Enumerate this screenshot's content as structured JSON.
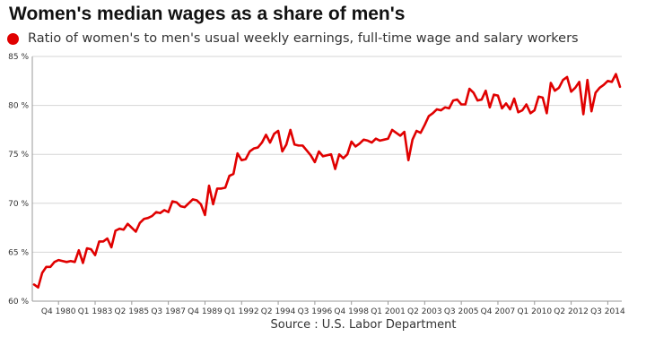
{
  "chart_data": {
    "type": "line",
    "title": "Women's median wages as a share of men's",
    "source": "Source : U.S. Labor Department",
    "xlabel": "",
    "ylabel": "",
    "ylim": [
      60,
      85
    ],
    "y_ticks": [
      "60 %",
      "65 %",
      "70 %",
      "75 %",
      "80 %",
      "85 %"
    ],
    "x_ticks": [
      "Q4 1980",
      "Q1 1983",
      "Q2 1985",
      "Q3 1987",
      "Q4 1989",
      "Q1 1992",
      "Q2 1994",
      "Q3 1996",
      "Q4 1998",
      "Q1 2001",
      "Q2 2003",
      "Q3 2005",
      "Q4 2007",
      "Q1 2010",
      "Q2 2012",
      "Q3 2014"
    ],
    "grid": true,
    "legend": "top-left",
    "color": "#e00000",
    "series": [
      {
        "name": "Ratio of women's to men's usual weekly earnings, full-time wage and salary workers",
        "values": [
          61.7,
          61.4,
          62.9,
          63.5,
          63.5,
          64.0,
          64.2,
          64.1,
          64.0,
          64.1,
          64.0,
          65.2,
          63.9,
          65.4,
          65.3,
          64.7,
          66.1,
          66.1,
          66.4,
          65.5,
          67.2,
          67.4,
          67.3,
          67.9,
          67.5,
          67.1,
          68.0,
          68.4,
          68.5,
          68.7,
          69.1,
          69.0,
          69.3,
          69.1,
          70.2,
          70.1,
          69.7,
          69.6,
          70.0,
          70.4,
          70.3,
          69.9,
          68.8,
          71.8,
          69.9,
          71.5,
          71.5,
          71.6,
          72.8,
          73.0,
          75.1,
          74.4,
          74.5,
          75.3,
          75.6,
          75.7,
          76.2,
          77.0,
          76.2,
          77.1,
          77.4,
          75.3,
          76.0,
          77.5,
          76.0,
          75.9,
          75.9,
          75.4,
          74.9,
          74.2,
          75.3,
          74.8,
          74.9,
          75.0,
          73.5,
          75.0,
          74.6,
          75.0,
          76.3,
          75.8,
          76.1,
          76.5,
          76.4,
          76.2,
          76.6,
          76.4,
          76.5,
          76.6,
          77.5,
          77.2,
          76.9,
          77.3,
          74.4,
          76.5,
          77.4,
          77.2,
          78.0,
          78.9,
          79.2,
          79.6,
          79.5,
          79.8,
          79.7,
          80.5,
          80.6,
          80.1,
          80.1,
          81.7,
          81.3,
          80.5,
          80.6,
          81.5,
          79.8,
          81.1,
          81.0,
          79.7,
          80.2,
          79.6,
          80.7,
          79.3,
          79.5,
          80.1,
          79.2,
          79.5,
          80.9,
          80.8,
          79.2,
          82.3,
          81.5,
          81.8,
          82.6,
          82.9,
          81.4,
          81.8,
          82.4,
          79.1,
          82.6,
          79.4,
          81.3,
          81.8,
          82.1,
          82.5,
          82.4,
          83.2,
          81.9
        ]
      }
    ]
  }
}
